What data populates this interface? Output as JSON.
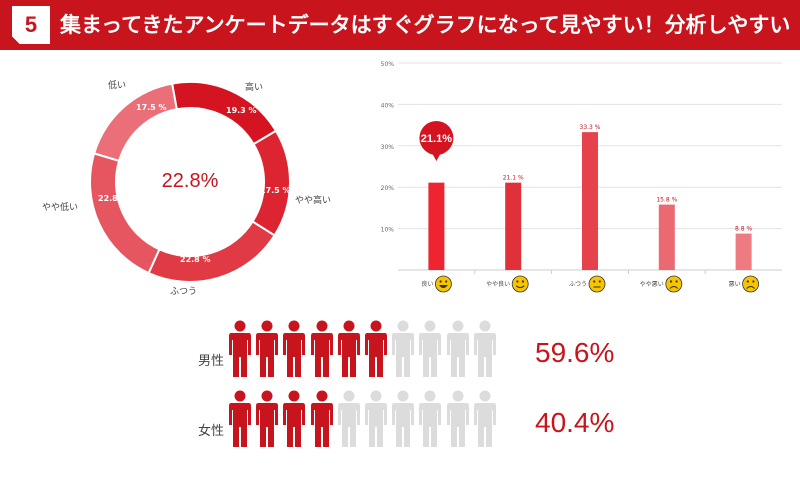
{
  "header": {
    "number": "5",
    "title": "集まってきたアンケートデータはすぐグラフになって見やすい！分析しやすい"
  },
  "donut": {
    "center_label": "22.8%",
    "slices": [
      {
        "label": "高い",
        "value": 19.3,
        "value_label": "19.3 %",
        "color": "#d41521"
      },
      {
        "label": "やや高い",
        "value": 17.5,
        "value_label": "17.5 %",
        "color": "#dc2530"
      },
      {
        "label": "ふつう",
        "value": 22.8,
        "value_label": "22.8 %",
        "color": "#e03a44"
      },
      {
        "label": "やや低い",
        "value": 22.8,
        "value_label": "22.8 %",
        "color": "#e55660"
      },
      {
        "label": "低い",
        "value": 17.5,
        "value_label": "17.5 %",
        "color": "#ea6f78"
      }
    ]
  },
  "chart_data": {
    "type": "bar",
    "categories": [
      "良い",
      "やや良い",
      "ふつう",
      "やや悪い",
      "悪い"
    ],
    "values": [
      21.1,
      21.1,
      33.3,
      15.8,
      8.8
    ],
    "value_labels": [
      "",
      "21.1 %",
      "33.3 %",
      "15.8 %",
      "8.8 %"
    ],
    "ylim": [
      0,
      50
    ],
    "yticks": [
      "10%",
      "20%",
      "30%",
      "40%",
      "50%"
    ],
    "highlight_label": "21.1%",
    "bar_colors": [
      "#ee2530",
      "#e0303a",
      "#e5424c",
      "#eb6a72",
      "#ee7a82"
    ],
    "faces": [
      "grin",
      "smile",
      "neutral",
      "frown",
      "sad"
    ],
    "grid": true
  },
  "gender": [
    {
      "label": "男性",
      "percent": "59.6%",
      "filled": 6,
      "total": 10
    },
    {
      "label": "女性",
      "percent": "40.4%",
      "filled": 4,
      "total": 10
    }
  ],
  "colors": {
    "accent": "#c8141d",
    "person_filled": "#c8141d",
    "person_empty": "#dcdcdc",
    "face": "#f7c400"
  }
}
